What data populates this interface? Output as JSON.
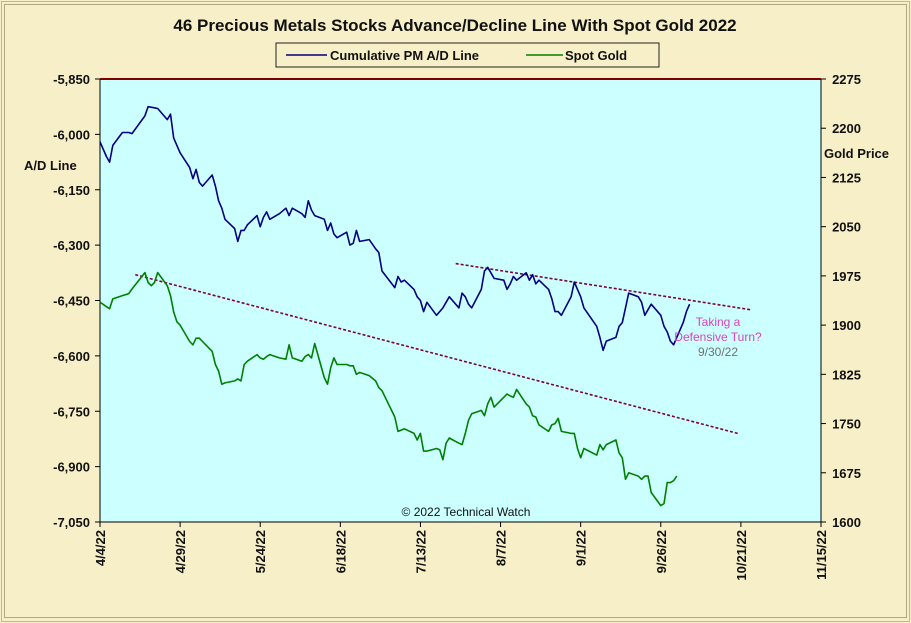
{
  "chart_data": {
    "type": "line",
    "title": "46 Precious Metals Stocks Advance/Decline Line With Spot Gold 2022",
    "ylabel_left": "A/D Line",
    "ylabel_right": "Gold Price",
    "legend": {
      "placement": "top-center",
      "entries": [
        "Cumulative PM A/D Line",
        "Spot Gold"
      ]
    },
    "grid": false,
    "x_tick_labels": [
      "4/4/22",
      "4/29/22",
      "5/24/22",
      "6/18/22",
      "7/13/22",
      "8/7/22",
      "9/1/22",
      "9/26/22",
      "10/21/22",
      "11/15/22"
    ],
    "x_range": [
      "2022-04-04",
      "2022-11-15"
    ],
    "y_left": {
      "range": [
        -7050,
        -5850
      ],
      "ticks": [
        "-5,850",
        "-6,000",
        "-6,150",
        "-6,300",
        "-6,450",
        "-6,600",
        "-6,750",
        "-6,900",
        "-7,050"
      ]
    },
    "y_right": {
      "range": [
        1600,
        2275
      ],
      "ticks": [
        "2275",
        "2200",
        "2125",
        "2050",
        "1975",
        "1900",
        "1825",
        "1750",
        "1675",
        "1600"
      ]
    },
    "colors": {
      "ad_line": "#000080",
      "gold": "#008000",
      "plot_bg": "#ccffff",
      "trend": "#800040",
      "annotation": "#e040c0",
      "date_note": "#707070"
    },
    "series": [
      {
        "name": "Cumulative PM A/D Line",
        "axis": "left",
        "points": [
          [
            "2022-04-04",
            -6020
          ],
          [
            "2022-04-06",
            -6060
          ],
          [
            "2022-04-07",
            -6075
          ],
          [
            "2022-04-08",
            -6030
          ],
          [
            "2022-04-11",
            -5995
          ],
          [
            "2022-04-13",
            -5995
          ],
          [
            "2022-04-14",
            -5998
          ],
          [
            "2022-04-18",
            -5950
          ],
          [
            "2022-04-19",
            -5925
          ],
          [
            "2022-04-21",
            -5928
          ],
          [
            "2022-04-22",
            -5930
          ],
          [
            "2022-04-25",
            -5960
          ],
          [
            "2022-04-26",
            -5945
          ],
          [
            "2022-04-27",
            -6010
          ],
          [
            "2022-04-28",
            -6030
          ],
          [
            "2022-04-29",
            -6050
          ],
          [
            "2022-05-02",
            -6090
          ],
          [
            "2022-05-03",
            -6120
          ],
          [
            "2022-05-04",
            -6095
          ],
          [
            "2022-05-05",
            -6130
          ],
          [
            "2022-05-06",
            -6140
          ],
          [
            "2022-05-09",
            -6110
          ],
          [
            "2022-05-10",
            -6140
          ],
          [
            "2022-05-11",
            -6180
          ],
          [
            "2022-05-12",
            -6200
          ],
          [
            "2022-05-13",
            -6230
          ],
          [
            "2022-05-16",
            -6255
          ],
          [
            "2022-05-17",
            -6290
          ],
          [
            "2022-05-18",
            -6260
          ],
          [
            "2022-05-19",
            -6260
          ],
          [
            "2022-05-20",
            -6245
          ],
          [
            "2022-05-23",
            -6220
          ],
          [
            "2022-05-24",
            -6250
          ],
          [
            "2022-05-25",
            -6225
          ],
          [
            "2022-05-26",
            -6210
          ],
          [
            "2022-05-27",
            -6230
          ],
          [
            "2022-05-30",
            -6215
          ],
          [
            "2022-06-01",
            -6200
          ],
          [
            "2022-06-02",
            -6220
          ],
          [
            "2022-06-03",
            -6200
          ],
          [
            "2022-06-06",
            -6215
          ],
          [
            "2022-06-07",
            -6225
          ],
          [
            "2022-06-08",
            -6180
          ],
          [
            "2022-06-09",
            -6205
          ],
          [
            "2022-06-10",
            -6220
          ],
          [
            "2022-06-13",
            -6230
          ],
          [
            "2022-06-14",
            -6260
          ],
          [
            "2022-06-15",
            -6240
          ],
          [
            "2022-06-16",
            -6270
          ],
          [
            "2022-06-17",
            -6280
          ],
          [
            "2022-06-20",
            -6265
          ],
          [
            "2022-06-21",
            -6300
          ],
          [
            "2022-06-22",
            -6295
          ],
          [
            "2022-06-23",
            -6260
          ],
          [
            "2022-06-24",
            -6290
          ],
          [
            "2022-06-27",
            -6285
          ],
          [
            "2022-06-29",
            -6310
          ],
          [
            "2022-06-30",
            -6320
          ],
          [
            "2022-07-01",
            -6370
          ],
          [
            "2022-07-05",
            -6415
          ],
          [
            "2022-07-06",
            -6385
          ],
          [
            "2022-07-07",
            -6400
          ],
          [
            "2022-07-08",
            -6395
          ],
          [
            "2022-07-11",
            -6420
          ],
          [
            "2022-07-12",
            -6440
          ],
          [
            "2022-07-13",
            -6450
          ],
          [
            "2022-07-14",
            -6480
          ],
          [
            "2022-07-15",
            -6455
          ],
          [
            "2022-07-18",
            -6490
          ],
          [
            "2022-07-19",
            -6480
          ],
          [
            "2022-07-20",
            -6470
          ],
          [
            "2022-07-21",
            -6455
          ],
          [
            "2022-07-22",
            -6440
          ],
          [
            "2022-07-25",
            -6470
          ],
          [
            "2022-07-26",
            -6430
          ],
          [
            "2022-07-27",
            -6440
          ],
          [
            "2022-07-28",
            -6460
          ],
          [
            "2022-07-29",
            -6470
          ],
          [
            "2022-08-01",
            -6420
          ],
          [
            "2022-08-02",
            -6370
          ],
          [
            "2022-08-03",
            -6360
          ],
          [
            "2022-08-04",
            -6375
          ],
          [
            "2022-08-05",
            -6390
          ],
          [
            "2022-08-08",
            -6395
          ],
          [
            "2022-08-09",
            -6420
          ],
          [
            "2022-08-10",
            -6405
          ],
          [
            "2022-08-11",
            -6385
          ],
          [
            "2022-08-12",
            -6395
          ],
          [
            "2022-08-15",
            -6375
          ],
          [
            "2022-08-16",
            -6395
          ],
          [
            "2022-08-17",
            -6380
          ],
          [
            "2022-08-18",
            -6405
          ],
          [
            "2022-08-19",
            -6395
          ],
          [
            "2022-08-22",
            -6420
          ],
          [
            "2022-08-23",
            -6445
          ],
          [
            "2022-08-24",
            -6480
          ],
          [
            "2022-08-25",
            -6480
          ],
          [
            "2022-08-26",
            -6490
          ],
          [
            "2022-08-29",
            -6440
          ],
          [
            "2022-08-30",
            -6400
          ],
          [
            "2022-08-31",
            -6420
          ],
          [
            "2022-09-01",
            -6440
          ],
          [
            "2022-09-02",
            -6470
          ],
          [
            "2022-09-06",
            -6520
          ],
          [
            "2022-09-07",
            -6550
          ],
          [
            "2022-09-08",
            -6585
          ],
          [
            "2022-09-09",
            -6560
          ],
          [
            "2022-09-12",
            -6550
          ],
          [
            "2022-09-13",
            -6520
          ],
          [
            "2022-09-14",
            -6510
          ],
          [
            "2022-09-15",
            -6470
          ],
          [
            "2022-09-16",
            -6430
          ],
          [
            "2022-09-19",
            -6440
          ],
          [
            "2022-09-20",
            -6455
          ],
          [
            "2022-09-21",
            -6490
          ],
          [
            "2022-09-22",
            -6475
          ],
          [
            "2022-09-23",
            -6460
          ],
          [
            "2022-09-26",
            -6490
          ],
          [
            "2022-09-27",
            -6520
          ],
          [
            "2022-09-28",
            -6535
          ],
          [
            "2022-09-29",
            -6560
          ],
          [
            "2022-09-30",
            -6570
          ],
          [
            "2022-10-03",
            -6510
          ],
          [
            "2022-10-04",
            -6480
          ],
          [
            "2022-10-05",
            -6460
          ]
        ]
      },
      {
        "name": "Spot Gold",
        "axis": "right",
        "points": [
          [
            "2022-04-04",
            1935
          ],
          [
            "2022-04-06",
            1928
          ],
          [
            "2022-04-07",
            1925
          ],
          [
            "2022-04-08",
            1940
          ],
          [
            "2022-04-11",
            1945
          ],
          [
            "2022-04-13",
            1948
          ],
          [
            "2022-04-14",
            1955
          ],
          [
            "2022-04-18",
            1980
          ],
          [
            "2022-04-19",
            1965
          ],
          [
            "2022-04-20",
            1960
          ],
          [
            "2022-04-21",
            1965
          ],
          [
            "2022-04-22",
            1980
          ],
          [
            "2022-04-25",
            1960
          ],
          [
            "2022-04-26",
            1945
          ],
          [
            "2022-04-27",
            1920
          ],
          [
            "2022-04-28",
            1905
          ],
          [
            "2022-04-29",
            1900
          ],
          [
            "2022-05-02",
            1875
          ],
          [
            "2022-05-03",
            1870
          ],
          [
            "2022-05-04",
            1880
          ],
          [
            "2022-05-05",
            1880
          ],
          [
            "2022-05-06",
            1875
          ],
          [
            "2022-05-09",
            1860
          ],
          [
            "2022-05-10",
            1840
          ],
          [
            "2022-05-11",
            1830
          ],
          [
            "2022-05-12",
            1810
          ],
          [
            "2022-05-13",
            1812
          ],
          [
            "2022-05-16",
            1815
          ],
          [
            "2022-05-17",
            1818
          ],
          [
            "2022-05-18",
            1815
          ],
          [
            "2022-05-19",
            1840
          ],
          [
            "2022-05-20",
            1845
          ],
          [
            "2022-05-23",
            1855
          ],
          [
            "2022-05-24",
            1850
          ],
          [
            "2022-05-25",
            1848
          ],
          [
            "2022-05-26",
            1852
          ],
          [
            "2022-05-27",
            1855
          ],
          [
            "2022-05-30",
            1850
          ],
          [
            "2022-06-01",
            1848
          ],
          [
            "2022-06-02",
            1870
          ],
          [
            "2022-06-03",
            1850
          ],
          [
            "2022-06-06",
            1845
          ],
          [
            "2022-06-07",
            1852
          ],
          [
            "2022-06-08",
            1855
          ],
          [
            "2022-06-09",
            1850
          ],
          [
            "2022-06-10",
            1872
          ],
          [
            "2022-06-13",
            1820
          ],
          [
            "2022-06-14",
            1810
          ],
          [
            "2022-06-15",
            1835
          ],
          [
            "2022-06-16",
            1850
          ],
          [
            "2022-06-17",
            1840
          ],
          [
            "2022-06-20",
            1840
          ],
          [
            "2022-06-21",
            1838
          ],
          [
            "2022-06-22",
            1838
          ],
          [
            "2022-06-23",
            1825
          ],
          [
            "2022-06-24",
            1828
          ],
          [
            "2022-06-27",
            1823
          ],
          [
            "2022-06-29",
            1815
          ],
          [
            "2022-06-30",
            1805
          ],
          [
            "2022-07-01",
            1800
          ],
          [
            "2022-07-05",
            1760
          ],
          [
            "2022-07-06",
            1738
          ],
          [
            "2022-07-07",
            1740
          ],
          [
            "2022-07-08",
            1742
          ],
          [
            "2022-07-11",
            1735
          ],
          [
            "2022-07-12",
            1725
          ],
          [
            "2022-07-13",
            1735
          ],
          [
            "2022-07-14",
            1708
          ],
          [
            "2022-07-15",
            1708
          ],
          [
            "2022-07-18",
            1712
          ],
          [
            "2022-07-19",
            1710
          ],
          [
            "2022-07-20",
            1695
          ],
          [
            "2022-07-21",
            1720
          ],
          [
            "2022-07-22",
            1728
          ],
          [
            "2022-07-25",
            1720
          ],
          [
            "2022-07-26",
            1718
          ],
          [
            "2022-07-27",
            1735
          ],
          [
            "2022-07-28",
            1755
          ],
          [
            "2022-07-29",
            1765
          ],
          [
            "2022-08-01",
            1770
          ],
          [
            "2022-08-02",
            1762
          ],
          [
            "2022-08-03",
            1780
          ],
          [
            "2022-08-04",
            1790
          ],
          [
            "2022-08-05",
            1775
          ],
          [
            "2022-08-08",
            1790
          ],
          [
            "2022-08-09",
            1795
          ],
          [
            "2022-08-10",
            1792
          ],
          [
            "2022-08-11",
            1790
          ],
          [
            "2022-08-12",
            1802
          ],
          [
            "2022-08-15",
            1780
          ],
          [
            "2022-08-16",
            1775
          ],
          [
            "2022-08-17",
            1762
          ],
          [
            "2022-08-18",
            1760
          ],
          [
            "2022-08-19",
            1748
          ],
          [
            "2022-08-22",
            1738
          ],
          [
            "2022-08-23",
            1748
          ],
          [
            "2022-08-24",
            1750
          ],
          [
            "2022-08-25",
            1758
          ],
          [
            "2022-08-26",
            1738
          ],
          [
            "2022-08-29",
            1735
          ],
          [
            "2022-08-30",
            1735
          ],
          [
            "2022-08-31",
            1712
          ],
          [
            "2022-09-01",
            1698
          ],
          [
            "2022-09-02",
            1712
          ],
          [
            "2022-09-06",
            1702
          ],
          [
            "2022-09-07",
            1718
          ],
          [
            "2022-09-08",
            1710
          ],
          [
            "2022-09-09",
            1718
          ],
          [
            "2022-09-12",
            1725
          ],
          [
            "2022-09-13",
            1705
          ],
          [
            "2022-09-14",
            1698
          ],
          [
            "2022-09-15",
            1665
          ],
          [
            "2022-09-16",
            1675
          ],
          [
            "2022-09-19",
            1670
          ],
          [
            "2022-09-20",
            1665
          ],
          [
            "2022-09-21",
            1670
          ],
          [
            "2022-09-22",
            1670
          ],
          [
            "2022-09-23",
            1645
          ],
          [
            "2022-09-26",
            1625
          ],
          [
            "2022-09-27",
            1628
          ],
          [
            "2022-09-28",
            1660
          ],
          [
            "2022-09-29",
            1660
          ],
          [
            "2022-09-30",
            1663
          ],
          [
            "2022-10-01",
            1670
          ]
        ]
      }
    ],
    "trendlines": [
      {
        "axis": "left",
        "from": [
          "2022-04-15",
          -6380
        ],
        "to": [
          "2022-10-20",
          -6810
        ]
      },
      {
        "axis": "left",
        "from": [
          "2022-07-24",
          -6350
        ],
        "to": [
          "2022-10-24",
          -6475
        ]
      }
    ],
    "plot_boundary_line": {
      "axis": "left",
      "value": -5850,
      "color": "#800000"
    },
    "annotations": {
      "defensive_line1": "Taking a",
      "defensive_line2": "Defensive  Turn?",
      "date_note": "9/30/22",
      "copyright": "© 2022 Technical Watch"
    }
  }
}
